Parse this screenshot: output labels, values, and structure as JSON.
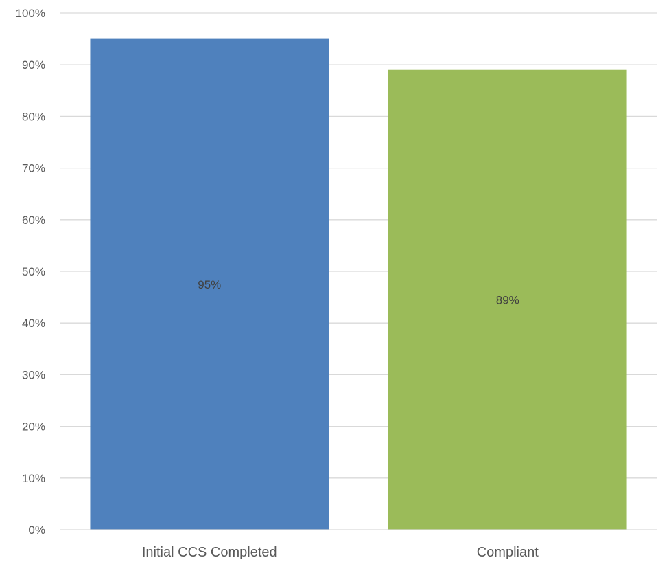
{
  "chart_data": {
    "type": "bar",
    "categories": [
      "Initial CCS Completed",
      "Compliant"
    ],
    "values": [
      95,
      89
    ],
    "data_labels": [
      "95%",
      "89%"
    ],
    "bar_colors": [
      "#4f81bd",
      "#9bbb59"
    ],
    "ylim": [
      0,
      100
    ],
    "yticks": [
      0,
      10,
      20,
      30,
      40,
      50,
      60,
      70,
      80,
      90,
      100
    ],
    "ytick_labels": [
      "0%",
      "10%",
      "20%",
      "30%",
      "40%",
      "50%",
      "60%",
      "70%",
      "80%",
      "90%",
      "100%"
    ],
    "grid": true,
    "legend": "none",
    "title": "",
    "xlabel": "",
    "ylabel": ""
  }
}
